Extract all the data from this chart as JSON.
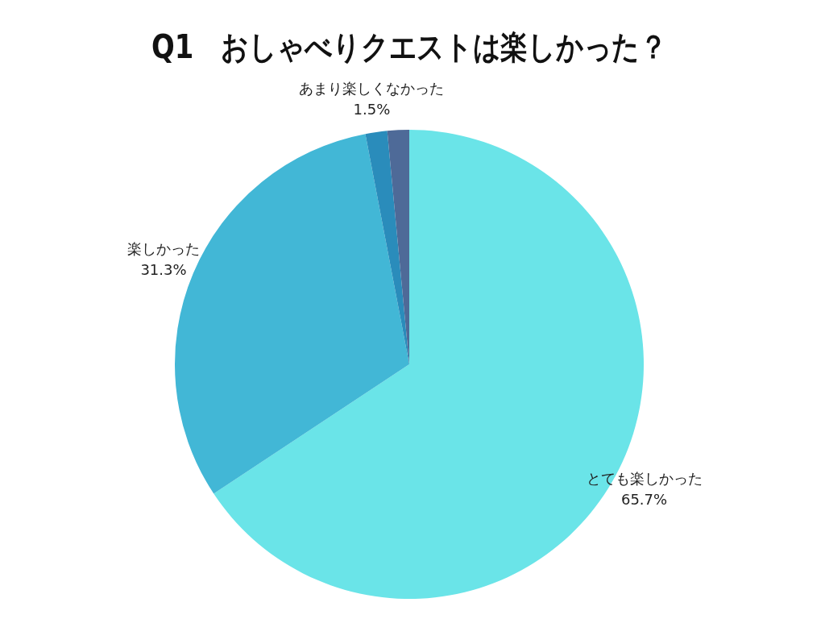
{
  "chart_data": {
    "type": "pie",
    "title": "Q1　おしゃべりクエストは楽しかった？",
    "categories": [
      "とても楽しかった",
      "楽しかった",
      "あまり楽しくなかった",
      null
    ],
    "values": [
      65.7,
      31.3,
      1.5,
      1.5
    ],
    "colors": [
      "#6ae4e8",
      "#42b7d6",
      "#2a8cbb",
      "#4e6a98"
    ],
    "value_labels": [
      "65.7%",
      "31.3%",
      "1.5%",
      null
    ],
    "legend": false
  }
}
